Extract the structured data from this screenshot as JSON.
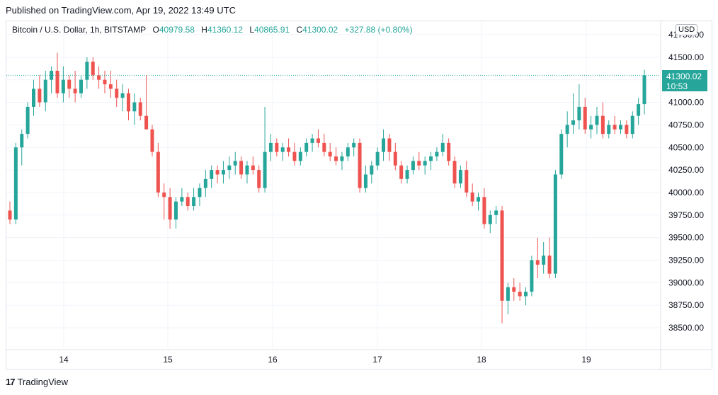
{
  "header": {
    "published": "Published on TradingView.com, Apr 19, 2022 13:49 UTC"
  },
  "legend": {
    "symbol": "Bitcoin / U.S. Dollar, 1h, BITSTAMP",
    "open_label": "O",
    "open": "40979.58",
    "high_label": "H",
    "high": "41360.12",
    "low_label": "L",
    "low": "40865.91",
    "close_label": "C",
    "close": "41300.02",
    "change": "+327.88 (+0.80%)"
  },
  "currency_button": "USD",
  "last_price": {
    "price": "41300.02",
    "countdown": "10:53"
  },
  "footer": {
    "logo_glyph": "17",
    "brand": "TradingView"
  },
  "colors": {
    "up": "#26a69a",
    "down": "#ef5350",
    "grid": "#f0f3fa",
    "axis_text": "#131722"
  },
  "chart_data": {
    "type": "candlestick",
    "title": "Bitcoin / U.S. Dollar, 1h, BITSTAMP",
    "ylim": [
      38250,
      41850
    ],
    "x_ticks": [
      "14",
      "15",
      "16",
      "17",
      "18",
      "19"
    ],
    "y_ticks": [
      "41750.00",
      "41500.00",
      "41250.00",
      "41000.00",
      "40750.00",
      "40500.00",
      "40250.00",
      "40000.00",
      "39750.00",
      "39500.00",
      "39250.00",
      "39000.00",
      "38750.00",
      "38500.00"
    ],
    "last_price_line": 41300.02,
    "series": [
      {
        "values": [
          [
            39800,
            39900,
            39650,
            39700
          ],
          [
            39700,
            40550,
            39650,
            40500
          ],
          [
            40500,
            40700,
            40300,
            40650
          ],
          [
            40650,
            41000,
            40600,
            40950
          ],
          [
            40950,
            41250,
            40850,
            41150
          ],
          [
            41150,
            41300,
            40950,
            41000
          ],
          [
            41000,
            41350,
            40900,
            41250
          ],
          [
            41250,
            41400,
            41100,
            41350
          ],
          [
            41350,
            41550,
            41050,
            41100
          ],
          [
            41100,
            41400,
            41000,
            41250
          ],
          [
            41250,
            41300,
            41050,
            41150
          ],
          [
            41150,
            41350,
            41000,
            41100
          ],
          [
            41100,
            41300,
            41050,
            41250
          ],
          [
            41250,
            41500,
            41150,
            41450
          ],
          [
            41450,
            41500,
            41250,
            41300
          ],
          [
            41300,
            41400,
            41150,
            41250
          ],
          [
            41250,
            41350,
            41100,
            41200
          ],
          [
            41200,
            41350,
            41050,
            41150
          ],
          [
            41150,
            41250,
            40950,
            41050
          ],
          [
            41050,
            41200,
            40900,
            41100
          ],
          [
            41100,
            41150,
            40800,
            40900
          ],
          [
            40900,
            41100,
            40750,
            41000
          ],
          [
            41000,
            41050,
            40800,
            40850
          ],
          [
            40850,
            41300,
            40750,
            40700
          ],
          [
            40700,
            40750,
            40400,
            40450
          ],
          [
            40450,
            40550,
            39950,
            40000
          ],
          [
            40000,
            40100,
            39700,
            39950
          ],
          [
            39950,
            40050,
            39600,
            39700
          ],
          [
            39700,
            39950,
            39600,
            39900
          ],
          [
            39900,
            40050,
            39850,
            39950
          ],
          [
            39950,
            40000,
            39800,
            39850
          ],
          [
            39850,
            40050,
            39800,
            39950
          ],
          [
            39950,
            40100,
            39850,
            40050
          ],
          [
            40050,
            40250,
            39950,
            40150
          ],
          [
            40150,
            40300,
            40050,
            40250
          ],
          [
            40250,
            40300,
            40100,
            40200
          ],
          [
            40200,
            40350,
            40100,
            40250
          ],
          [
            40250,
            40400,
            40150,
            40300
          ],
          [
            40300,
            40450,
            40200,
            40350
          ],
          [
            40350,
            40400,
            40150,
            40200
          ],
          [
            40200,
            40350,
            40100,
            40300
          ],
          [
            40300,
            40400,
            40200,
            40250
          ],
          [
            40250,
            40300,
            40000,
            40050
          ],
          [
            40050,
            40950,
            40000,
            40450
          ],
          [
            40450,
            40650,
            40350,
            40550
          ],
          [
            40550,
            40600,
            40400,
            40450
          ],
          [
            40450,
            40550,
            40350,
            40500
          ],
          [
            40500,
            40600,
            40400,
            40450
          ],
          [
            40450,
            40550,
            40300,
            40350
          ],
          [
            40350,
            40500,
            40300,
            40450
          ],
          [
            40450,
            40600,
            40400,
            40550
          ],
          [
            40550,
            40650,
            40450,
            40600
          ],
          [
            40600,
            40700,
            40500,
            40550
          ],
          [
            40550,
            40650,
            40400,
            40450
          ],
          [
            40450,
            40550,
            40350,
            40400
          ],
          [
            40400,
            40500,
            40300,
            40350
          ],
          [
            40350,
            40450,
            40250,
            40400
          ],
          [
            40400,
            40550,
            40350,
            40500
          ],
          [
            40500,
            40600,
            40400,
            40550
          ],
          [
            40550,
            40600,
            40000,
            40050
          ],
          [
            40050,
            40300,
            40000,
            40200
          ],
          [
            40200,
            40350,
            40100,
            40300
          ],
          [
            40300,
            40500,
            40250,
            40450
          ],
          [
            40450,
            40700,
            40350,
            40600
          ],
          [
            40600,
            40650,
            40350,
            40450
          ],
          [
            40450,
            40550,
            40250,
            40300
          ],
          [
            40300,
            40350,
            40100,
            40150
          ],
          [
            40150,
            40300,
            40100,
            40250
          ],
          [
            40250,
            40400,
            40200,
            40350
          ],
          [
            40350,
            40450,
            40250,
            40300
          ],
          [
            40300,
            40400,
            40200,
            40350
          ],
          [
            40350,
            40450,
            40250,
            40400
          ],
          [
            40400,
            40500,
            40350,
            40450
          ],
          [
            40450,
            40650,
            40400,
            40550
          ],
          [
            40550,
            40600,
            40300,
            40350
          ],
          [
            40350,
            40400,
            40050,
            40100
          ],
          [
            40100,
            40300,
            40050,
            40250
          ],
          [
            40250,
            40350,
            39950,
            40000
          ],
          [
            40000,
            40100,
            39850,
            39900
          ],
          [
            39900,
            40000,
            39800,
            39950
          ],
          [
            39950,
            40050,
            39600,
            39650
          ],
          [
            39650,
            39800,
            39550,
            39750
          ],
          [
            39750,
            39850,
            39650,
            39800
          ],
          [
            39800,
            39850,
            38550,
            38800
          ],
          [
            38800,
            39000,
            38650,
            38950
          ],
          [
            38950,
            39050,
            38800,
            38900
          ],
          [
            38900,
            39000,
            38800,
            38850
          ],
          [
            38850,
            38950,
            38750,
            38900
          ],
          [
            38900,
            39300,
            38850,
            39250
          ],
          [
            39250,
            39500,
            39050,
            39200
          ],
          [
            39200,
            39450,
            39100,
            39300
          ],
          [
            39300,
            39500,
            39050,
            39100
          ],
          [
            39100,
            40250,
            39050,
            40200
          ],
          [
            40200,
            40700,
            40150,
            40650
          ],
          [
            40650,
            40900,
            40500,
            40750
          ],
          [
            40750,
            41100,
            40650,
            40800
          ],
          [
            40800,
            41200,
            40700,
            40950
          ],
          [
            40950,
            41050,
            40650,
            40700
          ],
          [
            40700,
            40850,
            40600,
            40750
          ],
          [
            40750,
            40950,
            40650,
            40850
          ],
          [
            40850,
            41000,
            40600,
            40650
          ],
          [
            40650,
            40800,
            40600,
            40750
          ],
          [
            40750,
            40850,
            40650,
            40700
          ],
          [
            40700,
            40800,
            40650,
            40750
          ],
          [
            40750,
            40800,
            40600,
            40650
          ],
          [
            40650,
            40900,
            40600,
            40850
          ],
          [
            40850,
            41050,
            40750,
            40980
          ],
          [
            40980,
            41360,
            40866,
            41300
          ]
        ]
      }
    ]
  }
}
